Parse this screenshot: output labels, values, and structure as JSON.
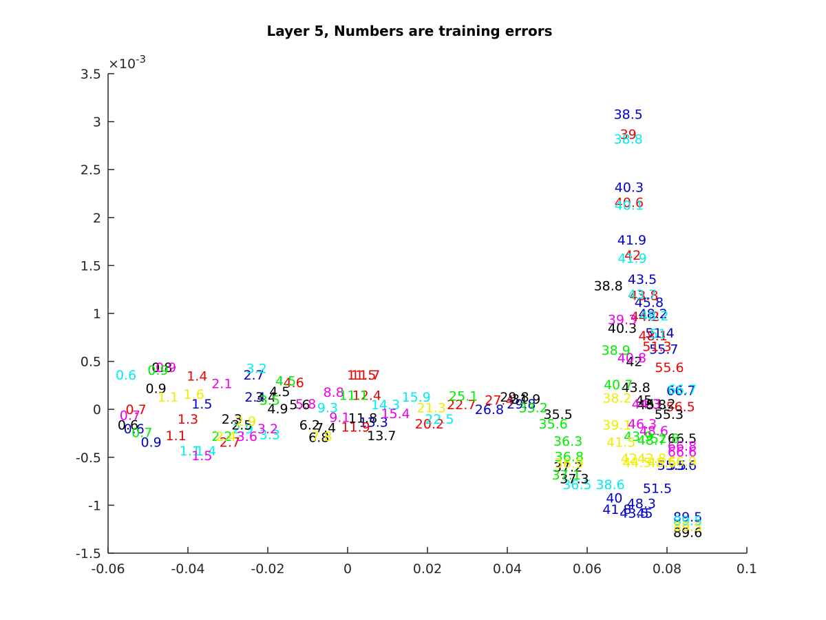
{
  "chart_data": {
    "type": "scatter",
    "title": "Layer 5, Numbers are training errors",
    "xlabel": "",
    "ylabel": "",
    "xlim": [
      -0.06,
      0.1
    ],
    "ylim": [
      -1.5,
      3.5
    ],
    "y_exponent_label": "×10-3",
    "x_ticks": [
      "-0.06",
      "-0.04",
      "-0.02",
      "0",
      "0.02",
      "0.04",
      "0.06",
      "0.08",
      "0.1"
    ],
    "x_tick_values": [
      -0.06,
      -0.04,
      -0.02,
      0,
      0.02,
      0.04,
      0.06,
      0.08,
      0.1
    ],
    "y_ticks": [
      "-1.5",
      "-1",
      "-0.5",
      "0",
      "0.5",
      "1",
      "1.5",
      "2",
      "2.5",
      "3",
      "3.5"
    ],
    "y_tick_values": [
      -1.5,
      -1,
      -0.5,
      0,
      0.5,
      1,
      1.5,
      2,
      2.5,
      3,
      3.5
    ],
    "grid": false,
    "legend": "none",
    "colors": {
      "blue": "#0000cc",
      "red": "#ee0000",
      "cyan": "#00eeee",
      "black": "#000000",
      "magenta": "#ee00ee",
      "green": "#00ee00",
      "yellow": "#eeee00"
    },
    "series": [
      {
        "color": "blue",
        "points": [
          {
            "x": 0.0703,
            "y": 3.08,
            "label": "38.5"
          },
          {
            "x": 0.0705,
            "y": 2.32,
            "label": "40.3"
          },
          {
            "x": 0.0712,
            "y": 1.77,
            "label": "41.9"
          },
          {
            "x": 0.0738,
            "y": 1.36,
            "label": "43.5"
          },
          {
            "x": 0.0755,
            "y": 1.12,
            "label": "45.8"
          },
          {
            "x": 0.0765,
            "y": 1.0,
            "label": "48.2"
          },
          {
            "x": 0.0782,
            "y": 0.8,
            "label": "51.4"
          },
          {
            "x": 0.0792,
            "y": 0.63,
            "label": "55.7"
          },
          {
            "x": 0.0835,
            "y": 0.2,
            "label": "66.7"
          },
          {
            "x": 0.0812,
            "y": -0.58,
            "label": "55.5"
          },
          {
            "x": 0.0838,
            "y": -0.58,
            "label": "55.6"
          },
          {
            "x": 0.0776,
            "y": -0.82,
            "label": "51.5"
          },
          {
            "x": 0.0668,
            "y": -0.92,
            "label": "40"
          },
          {
            "x": 0.0736,
            "y": -0.98,
            "label": "48.3"
          },
          {
            "x": 0.0675,
            "y": -1.04,
            "label": "41.8"
          },
          {
            "x": 0.0718,
            "y": -1.08,
            "label": "43.5"
          },
          {
            "x": 0.0744,
            "y": -1.08,
            "label": "45"
          },
          {
            "x": 0.0852,
            "y": -1.12,
            "label": "89.5"
          },
          {
            "x": -0.0235,
            "y": 0.36,
            "label": "2.7"
          },
          {
            "x": -0.0535,
            "y": -0.2,
            "label": "0.6"
          },
          {
            "x": -0.0492,
            "y": -0.34,
            "label": "0.9"
          },
          {
            "x": -0.0232,
            "y": 0.13,
            "label": "2.4"
          },
          {
            "x": -0.0365,
            "y": 0.06,
            "label": "1.5"
          },
          {
            "x": 0.0065,
            "y": -0.13,
            "label": "13.3"
          },
          {
            "x": 0.0355,
            "y": 0.0,
            "label": "26.8"
          },
          {
            "x": 0.0435,
            "y": 0.06,
            "label": "29.8"
          }
        ]
      },
      {
        "color": "red",
        "points": [
          {
            "x": 0.0703,
            "y": 2.87,
            "label": "39"
          },
          {
            "x": 0.0705,
            "y": 2.16,
            "label": "40.6"
          },
          {
            "x": 0.0714,
            "y": 1.61,
            "label": "42"
          },
          {
            "x": 0.0742,
            "y": 1.19,
            "label": "43.8"
          },
          {
            "x": 0.0745,
            "y": 0.97,
            "label": "44.2"
          },
          {
            "x": 0.0765,
            "y": 0.77,
            "label": "48.1"
          },
          {
            "x": 0.0775,
            "y": 0.66,
            "label": "51.3"
          },
          {
            "x": 0.0806,
            "y": 0.44,
            "label": "55.6"
          },
          {
            "x": 0.0834,
            "y": 0.03,
            "label": "56.5"
          },
          {
            "x": -0.0377,
            "y": 0.35,
            "label": "1.4"
          },
          {
            "x": 0.0035,
            "y": 0.36,
            "label": "11.5"
          },
          {
            "x": 0.0045,
            "y": 0.36,
            "label": "11.7"
          },
          {
            "x": -0.0135,
            "y": 0.28,
            "label": "4.6"
          },
          {
            "x": 0.0048,
            "y": 0.15,
            "label": "12.4"
          },
          {
            "x": -0.043,
            "y": -0.27,
            "label": "1.1"
          },
          {
            "x": -0.0295,
            "y": -0.34,
            "label": "2.7"
          },
          {
            "x": 0.0285,
            "y": 0.05,
            "label": "22.7"
          },
          {
            "x": 0.0205,
            "y": -0.15,
            "label": "20.2"
          },
          {
            "x": -0.053,
            "y": 0.0,
            "label": "0.7"
          },
          {
            "x": -0.04,
            "y": -0.1,
            "label": "1.3"
          },
          {
            "x": 0.038,
            "y": 0.1,
            "label": "27.4"
          },
          {
            "x": 0.002,
            "y": -0.18,
            "label": "11.9"
          }
        ]
      },
      {
        "color": "cyan",
        "points": [
          {
            "x": 0.0703,
            "y": 2.82,
            "label": "38.8"
          },
          {
            "x": 0.0705,
            "y": 2.13,
            "label": "40.1"
          },
          {
            "x": 0.0713,
            "y": 1.58,
            "label": "41.9"
          },
          {
            "x": 0.0738,
            "y": 1.2,
            "label": "43.7"
          },
          {
            "x": 0.0768,
            "y": 0.98,
            "label": "48.2"
          },
          {
            "x": 0.0778,
            "y": 0.79,
            "label": "51"
          },
          {
            "x": 0.0838,
            "y": 0.21,
            "label": "66.7"
          },
          {
            "x": 0.0852,
            "y": -1.16,
            "label": "89.5"
          },
          {
            "x": -0.0228,
            "y": 0.43,
            "label": "3.2"
          },
          {
            "x": -0.0555,
            "y": 0.36,
            "label": "0.6"
          },
          {
            "x": 0.0172,
            "y": 0.13,
            "label": "15.9"
          },
          {
            "x": -0.0395,
            "y": -0.43,
            "label": "1.1"
          },
          {
            "x": -0.0355,
            "y": -0.43,
            "label": "1.4"
          },
          {
            "x": -0.0195,
            "y": -0.26,
            "label": "3.3"
          },
          {
            "x": -0.0262,
            "y": -0.2,
            "label": "2.9"
          },
          {
            "x": 0.023,
            "y": -0.1,
            "label": "22.5"
          },
          {
            "x": 0.0575,
            "y": -0.78,
            "label": "36.5"
          },
          {
            "x": 0.0658,
            "y": -0.78,
            "label": "38.6"
          },
          {
            "x": 0.0095,
            "y": 0.05,
            "label": "14.3"
          },
          {
            "x": -0.005,
            "y": 0.02,
            "label": "9.3"
          }
        ]
      },
      {
        "color": "black",
        "points": [
          {
            "x": -0.0465,
            "y": 0.44,
            "label": "0.8"
          },
          {
            "x": -0.048,
            "y": 0.22,
            "label": "0.9"
          },
          {
            "x": -0.017,
            "y": 0.19,
            "label": "4.5"
          },
          {
            "x": -0.0205,
            "y": 0.13,
            "label": "3.4"
          },
          {
            "x": -0.0175,
            "y": 0.01,
            "label": "4.9"
          },
          {
            "x": -0.0265,
            "y": -0.16,
            "label": "2.5"
          },
          {
            "x": -0.0095,
            "y": -0.16,
            "label": "6.2"
          },
          {
            "x": -0.0072,
            "y": -0.29,
            "label": "6.8"
          },
          {
            "x": -0.0055,
            "y": -0.19,
            "label": "7.4"
          },
          {
            "x": 0.0085,
            "y": -0.27,
            "label": "13.7"
          },
          {
            "x": 0.0038,
            "y": -0.09,
            "label": "11.8"
          },
          {
            "x": 0.0418,
            "y": 0.13,
            "label": "29.8"
          },
          {
            "x": 0.0447,
            "y": 0.11,
            "label": "31.9"
          },
          {
            "x": 0.0527,
            "y": -0.05,
            "label": "35.5"
          },
          {
            "x": 0.0552,
            "y": -0.6,
            "label": "37.2"
          },
          {
            "x": 0.0568,
            "y": -0.72,
            "label": "37.3"
          },
          {
            "x": 0.0653,
            "y": 1.29,
            "label": "38.8"
          },
          {
            "x": 0.0688,
            "y": 0.85,
            "label": "40.3"
          },
          {
            "x": 0.0718,
            "y": 0.5,
            "label": "42"
          },
          {
            "x": 0.0722,
            "y": 0.23,
            "label": "43.8"
          },
          {
            "x": 0.0742,
            "y": 0.1,
            "label": "45"
          },
          {
            "x": 0.0762,
            "y": 0.05,
            "label": "48.8"
          },
          {
            "x": 0.0785,
            "y": 0.06,
            "label": "51.2"
          },
          {
            "x": 0.0805,
            "y": -0.05,
            "label": "55.3"
          },
          {
            "x": 0.0838,
            "y": -0.3,
            "label": "66.5"
          },
          {
            "x": 0.0852,
            "y": -1.28,
            "label": "89.6"
          },
          {
            "x": -0.055,
            "y": -0.16,
            "label": "0.6"
          },
          {
            "x": -0.029,
            "y": -0.1,
            "label": "2.3"
          },
          {
            "x": -0.012,
            "y": 0.05,
            "label": "5.6"
          }
        ]
      },
      {
        "color": "magenta",
        "points": [
          {
            "x": 0.0688,
            "y": 0.94,
            "label": "39.3"
          },
          {
            "x": 0.0712,
            "y": 0.54,
            "label": "40.8"
          },
          {
            "x": 0.0748,
            "y": 0.06,
            "label": "44.3"
          },
          {
            "x": 0.0738,
            "y": -0.15,
            "label": "46.3"
          },
          {
            "x": 0.0767,
            "y": -0.22,
            "label": "48.6"
          },
          {
            "x": 0.0838,
            "y": -0.38,
            "label": "66.8"
          },
          {
            "x": 0.0838,
            "y": -0.44,
            "label": "66.6"
          },
          {
            "x": -0.0455,
            "y": 0.44,
            "label": "0.9"
          },
          {
            "x": -0.0365,
            "y": -0.48,
            "label": "1.5"
          },
          {
            "x": -0.0252,
            "y": -0.28,
            "label": "3.6"
          },
          {
            "x": -0.0315,
            "y": 0.27,
            "label": "2.1"
          },
          {
            "x": -0.0545,
            "y": -0.06,
            "label": "0.7"
          },
          {
            "x": -0.0035,
            "y": 0.18,
            "label": "8.8"
          },
          {
            "x": -0.0105,
            "y": 0.06,
            "label": "5.8"
          },
          {
            "x": 0.012,
            "y": -0.04,
            "label": "15.4"
          },
          {
            "x": -0.02,
            "y": -0.2,
            "label": "3.2"
          },
          {
            "x": -0.002,
            "y": -0.08,
            "label": "9.1"
          }
        ]
      },
      {
        "color": "green",
        "points": [
          {
            "x": 0.0672,
            "y": 0.62,
            "label": "38.9"
          },
          {
            "x": 0.0678,
            "y": 0.26,
            "label": "40.7"
          },
          {
            "x": 0.0728,
            "y": -0.28,
            "label": "43.9"
          },
          {
            "x": 0.0762,
            "y": -0.32,
            "label": "48.7"
          },
          {
            "x": 0.0795,
            "y": -0.3,
            "label": "52.8"
          },
          {
            "x": -0.0475,
            "y": 0.41,
            "label": "0.9"
          },
          {
            "x": -0.0155,
            "y": 0.3,
            "label": "4.5"
          },
          {
            "x": -0.0515,
            "y": -0.24,
            "label": "0.7"
          },
          {
            "x": -0.0315,
            "y": -0.28,
            "label": "2.2"
          },
          {
            "x": 0.0015,
            "y": 0.15,
            "label": "11.1"
          },
          {
            "x": 0.029,
            "y": 0.14,
            "label": "25.1"
          },
          {
            "x": 0.0515,
            "y": -0.15,
            "label": "35.6"
          },
          {
            "x": 0.0552,
            "y": -0.33,
            "label": "36.3"
          },
          {
            "x": 0.0555,
            "y": -0.49,
            "label": "36.8"
          },
          {
            "x": 0.0548,
            "y": -0.68,
            "label": "37.1"
          },
          {
            "x": -0.0195,
            "y": 0.1,
            "label": "3.5"
          },
          {
            "x": 0.0465,
            "y": 0.02,
            "label": "33.2"
          }
        ]
      },
      {
        "color": "yellow",
        "points": [
          {
            "x": 0.0675,
            "y": 0.12,
            "label": "38.2"
          },
          {
            "x": 0.0675,
            "y": -0.16,
            "label": "39.1"
          },
          {
            "x": 0.0685,
            "y": -0.34,
            "label": "41.5"
          },
          {
            "x": 0.0705,
            "y": -0.51,
            "label": "42"
          },
          {
            "x": 0.0725,
            "y": -0.55,
            "label": "44.5"
          },
          {
            "x": 0.0762,
            "y": -0.51,
            "label": "42.8"
          },
          {
            "x": 0.0788,
            "y": -0.55,
            "label": "48.5"
          },
          {
            "x": 0.0838,
            "y": -0.54,
            "label": "66.9"
          },
          {
            "x": 0.0852,
            "y": -1.22,
            "label": "89.5"
          },
          {
            "x": -0.0305,
            "y": -0.28,
            "label": "2.4"
          },
          {
            "x": -0.045,
            "y": 0.13,
            "label": "1.1"
          },
          {
            "x": -0.0065,
            "y": -0.28,
            "label": "7.8"
          },
          {
            "x": 0.021,
            "y": 0.02,
            "label": "21.3"
          },
          {
            "x": -0.0385,
            "y": 0.16,
            "label": "1.6"
          },
          {
            "x": -0.0255,
            "y": -0.12,
            "label": "2.9"
          },
          {
            "x": 0.0555,
            "y": -0.56,
            "label": "36.9"
          }
        ]
      }
    ]
  }
}
